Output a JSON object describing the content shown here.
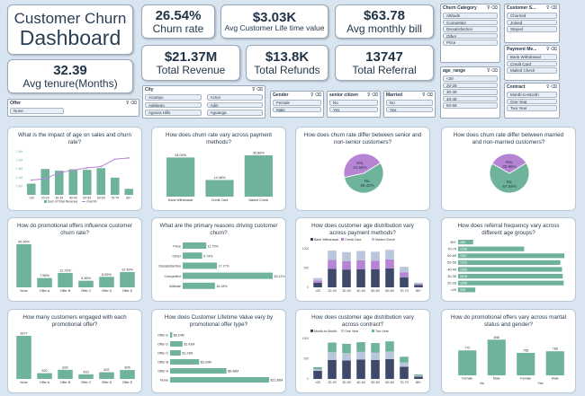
{
  "title": {
    "line1": "Customer Churn",
    "line2": "Dashboard"
  },
  "kpis": [
    {
      "value": "26.54%",
      "label": "Churn rate"
    },
    {
      "value": "$3.03K",
      "label": "Avg Customer Life time value"
    },
    {
      "value": "$63.78",
      "label": "Avg monthly bill"
    },
    {
      "value": "$21.37M",
      "label": "Total Revenue"
    },
    {
      "value": "$13.8K",
      "label": "Total Refunds"
    },
    {
      "value": "13747",
      "label": "Total Referral"
    },
    {
      "value": "32.39",
      "label": "Avg tenure(Months)"
    }
  ],
  "slicers": {
    "offer": {
      "title": "Offer",
      "items": [
        "None"
      ]
    },
    "city": {
      "title": "City",
      "items": [
        "Acampo",
        "Acton",
        "Adelanto",
        "Adin",
        "Agoura Hills",
        "Aguanga"
      ]
    },
    "gender": {
      "title": "Gender",
      "items": [
        "Female",
        "Male"
      ]
    },
    "senior": {
      "title": "senior citizen",
      "items": [
        "No",
        "Yes"
      ]
    },
    "married": {
      "title": "Married",
      "items": [
        "No",
        "Yes"
      ]
    },
    "churn_cat": {
      "title": "Churn Category",
      "items": [
        "Attitude",
        "Competitor",
        "Dissatisfaction",
        "Other",
        "Price"
      ]
    },
    "customer_s": {
      "title": "Customer S...",
      "items": [
        "Churned",
        "Joined",
        "Stayed"
      ]
    },
    "age_range": {
      "title": "age_range",
      "items": [
        "<20",
        "20-29",
        "30-39",
        "40-49",
        "50-59"
      ]
    },
    "payment": {
      "title": "Payment Me...",
      "items": [
        "Bank Withdrawal",
        "Credit Card",
        "Mailed Check"
      ]
    },
    "contract": {
      "title": "Contract",
      "items": [
        "Month-to-Month",
        "One Year",
        "Two Year"
      ]
    }
  },
  "icons": {
    "filter": "filter-icon",
    "clear": "eraser-icon"
  },
  "panels": [
    {
      "title": "What is the impact of age on sales and churn rate?"
    },
    {
      "title": "How does churn rate vary across payment methods?"
    },
    {
      "title": "How does churn rate differ between senior and non-senior customers?"
    },
    {
      "title": "How does churn rate differ between married and non-married customers?"
    },
    {
      "title": "How do promotional offers influence customer churn rate?"
    },
    {
      "title": "What are the primary reasons driving customer churn?"
    },
    {
      "title": "How does customer age distribution vary across payment methods?"
    },
    {
      "title": "How does referral frequency vary across different age groups?"
    },
    {
      "title": "How many customers engaged with each promotional offer?"
    },
    {
      "title": "How does Customer Lifetime Value vary by promotional offer type?"
    },
    {
      "title": "How does customer age distribution vary across contract?"
    },
    {
      "title": "How do promotional offers vary across marital status and gender?"
    }
  ],
  "colors": {
    "teal": "#6fb39b",
    "purple": "#b784d4",
    "dark": "#3f4a6b",
    "light": "#b8c7dc",
    "bg": "#d9e6f2"
  },
  "chart_data": [
    {
      "type": "combo",
      "categories": [
        "<20",
        "20-29",
        "30-39",
        "40-49",
        "50-59",
        "60-69",
        "70-79",
        "80+"
      ],
      "values": [
        650,
        1500,
        1400,
        1480,
        1450,
        1550,
        1000,
        350
      ],
      "line_values": [
        12,
        13,
        18,
        20,
        22,
        23,
        29,
        30
      ],
      "legend": [
        "Sum of Total Revenue",
        "churn%"
      ],
      "yticks": [
        "2.5M",
        "2.0M",
        "1.5M",
        "1.0M",
        "0.5M"
      ]
    },
    {
      "type": "bar",
      "categories": [
        "Bank Withdrawal",
        "Credit Card",
        "Mailed Check"
      ],
      "values": [
        34.0,
        14.48,
        35.88
      ],
      "labels": [
        "34.00%",
        "14.48%",
        "35.88%"
      ]
    },
    {
      "type": "pie",
      "slices": [
        {
          "name": "No",
          "value": 55.42,
          "label": "No,\n55.42%"
        },
        {
          "name": "Yes",
          "value": 44.58,
          "label": "Yes,\n44.58%"
        }
      ]
    },
    {
      "type": "pie",
      "slices": [
        {
          "name": "No",
          "value": 67.04,
          "label": "No,\n67.04%"
        },
        {
          "name": "Yes",
          "value": 32.96,
          "label": "Yes,\n32.96%"
        }
      ]
    },
    {
      "type": "bar",
      "categories": [
        "None",
        "Offer A",
        "Offer B",
        "Offer C",
        "Offer D",
        "Offer E"
      ],
      "values": [
        35.05,
        7.58,
        11.73,
        5.36,
        8.55,
        12.43
      ],
      "labels": [
        "35.05%",
        "7.58%",
        "11.73%",
        "5.36%",
        "8.55%",
        "12.43%"
      ]
    },
    {
      "type": "hbar",
      "categories": [
        "Price",
        "Other",
        "Dissatisfaction",
        "Competitor",
        "Attitude"
      ],
      "values": [
        11.79,
        9.74,
        17.17,
        45.12,
        16.18
      ],
      "labels": [
        "11.79%",
        "9.74%",
        "17.17%",
        "45.12%",
        "16.18%"
      ]
    },
    {
      "type": "stacked",
      "categories": [
        "<20",
        "20-29",
        "30-39",
        "40-49",
        "50-59",
        "60-69",
        "70-79",
        "80+"
      ],
      "series": [
        {
          "name": "Bank Withdrawal",
          "values": [
            120,
            480,
            460,
            470,
            470,
            490,
            260,
            60
          ]
        },
        {
          "name": "Credit Card",
          "values": [
            60,
            230,
            220,
            230,
            220,
            230,
            130,
            30
          ]
        },
        {
          "name": "Mailed Check",
          "values": [
            60,
            240,
            230,
            240,
            230,
            250,
            140,
            30
          ]
        }
      ]
    },
    {
      "type": "hbar",
      "categories": [
        "80+",
        "70-79",
        "60-69",
        "50-59",
        "40-49",
        "30-39",
        "20-29",
        "<20"
      ],
      "values": [
        285,
        1248,
        2007,
        1932,
        1965,
        1978,
        1996,
        326
      ],
      "labels": [
        "285",
        "1248",
        "2007",
        "1932",
        "1965",
        "1978",
        "1996",
        "326"
      ]
    },
    {
      "type": "bar",
      "categories": [
        "None",
        "Offer A",
        "Offer B",
        "Offer C",
        "Offer D",
        "Offer E"
      ],
      "values": [
        3877,
        520,
        824,
        415,
        602,
        805
      ],
      "labels": [
        "3877",
        "520",
        "824",
        "415",
        "602",
        "805"
      ]
    },
    {
      "type": "hbar",
      "categories": [
        "Offer E",
        "Offer D",
        "Offer C",
        "Offer B",
        "Offer A",
        "None"
      ],
      "values": [
        0.24,
        1.43,
        1.23,
        3.34,
        6.48,
        11.38
      ],
      "labels": [
        "$0.24M",
        "$1.43M",
        "$1.23M",
        "$3.34M",
        "$6.48M",
        "$11.38M"
      ]
    },
    {
      "type": "stacked",
      "categories": [
        "<20",
        "20-29",
        "30-39",
        "40-49",
        "50-59",
        "60-69",
        "70-79",
        "80+"
      ],
      "series": [
        {
          "name": "Month-to-Month",
          "values": [
            200,
            470,
            460,
            480,
            470,
            490,
            300,
            60
          ]
        },
        {
          "name": "One Year",
          "values": [
            40,
            190,
            180,
            190,
            180,
            190,
            110,
            20
          ]
        },
        {
          "name": "Two Year",
          "values": [
            50,
            240,
            230,
            240,
            240,
            250,
            140,
            30
          ]
        }
      ]
    },
    {
      "type": "grouped",
      "groups": [
        "No",
        "Yes"
      ],
      "subgroups": [
        "Female",
        "Male",
        "Female",
        "Male"
      ],
      "values": [
        772,
        846,
        755,
        766
      ],
      "labels": [
        "772",
        "846",
        "755",
        "766"
      ]
    }
  ]
}
